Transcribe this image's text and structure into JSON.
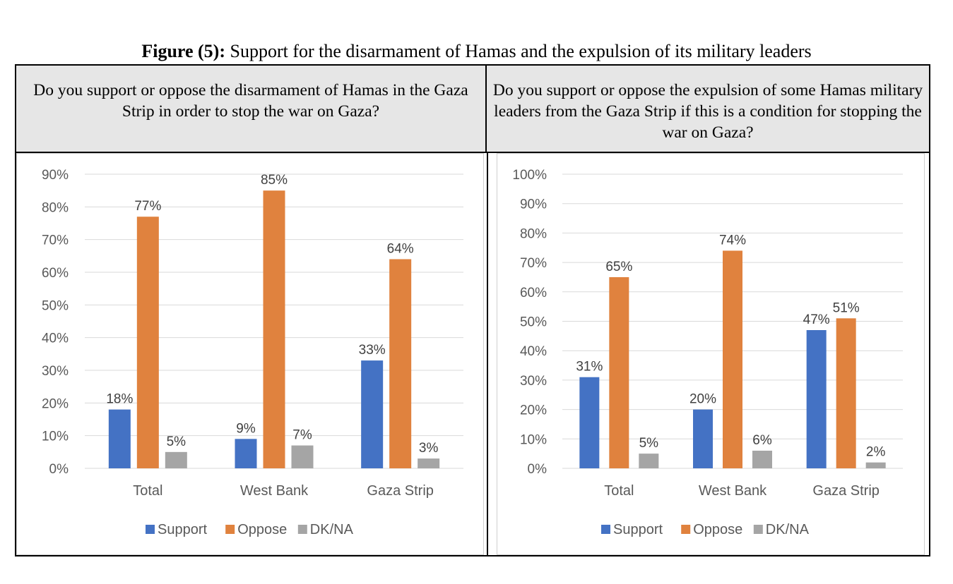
{
  "figure": {
    "title_bold": "Figure (5):",
    "title_rest": " Support for the disarmament of Hamas and the expulsion of its military leaders"
  },
  "questions": [
    "Do you support or oppose the disarmament of Hamas in the Gaza Strip in order to stop the war on Gaza?",
    "Do you support or oppose the expulsion of some Hamas military leaders from the Gaza Strip if this is a condition for stopping the war on Gaza?"
  ],
  "colors": {
    "Support": "#4472c4",
    "Oppose": "#e0823e",
    "DK/NA": "#a5a5a5",
    "grid": "#d9d9d9",
    "axis_text": "#595959"
  },
  "chart_data": [
    {
      "type": "bar",
      "categories": [
        "Total",
        "West Bank",
        "Gaza Strip"
      ],
      "series": [
        {
          "name": "Support",
          "values": [
            18,
            9,
            33
          ]
        },
        {
          "name": "Oppose",
          "values": [
            77,
            85,
            64
          ]
        },
        {
          "name": "DK/NA",
          "values": [
            5,
            7,
            3
          ]
        }
      ],
      "ylim": [
        0,
        90
      ],
      "ytick_step": 10,
      "ytick_suffix": "%",
      "data_labels": [
        "18%",
        "77%",
        "5%",
        "9%",
        "85%",
        "7%",
        "33%",
        "64%",
        "3%"
      ],
      "grid": true,
      "legend": "bottom"
    },
    {
      "type": "bar",
      "categories": [
        "Total",
        "West Bank",
        "Gaza Strip"
      ],
      "series": [
        {
          "name": "Support",
          "values": [
            31,
            20,
            47
          ]
        },
        {
          "name": "Oppose",
          "values": [
            65,
            74,
            51
          ]
        },
        {
          "name": "DK/NA",
          "values": [
            5,
            6,
            2
          ]
        }
      ],
      "ylim": [
        0,
        100
      ],
      "ytick_step": 10,
      "ytick_suffix": "%",
      "data_labels": [
        "31%",
        "65%",
        "5%",
        "20%",
        "74%",
        "6%",
        "47%",
        "51%",
        "2%"
      ],
      "grid": true,
      "legend": "bottom"
    }
  ]
}
